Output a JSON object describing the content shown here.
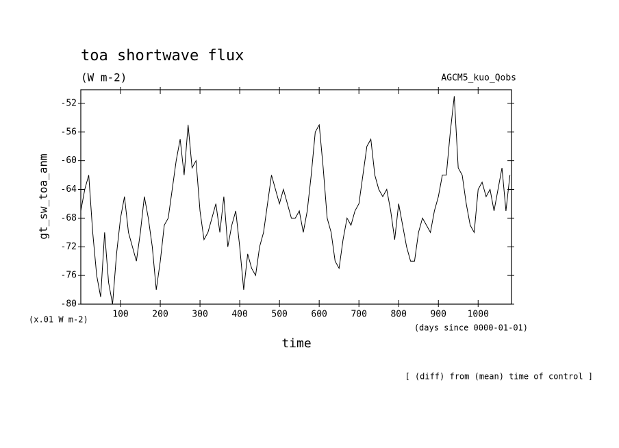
{
  "chart_data": {
    "type": "line",
    "title": "toa shortwave flux",
    "subtitle": "(W m-2)",
    "annotation_right": "AGCM5_kuo_Qobs",
    "y_label": "gt_sw_toa_anm",
    "y_unit": "(x.01 W m-2)",
    "x_unit": "(days since 0000-01-01)",
    "x_label": "time",
    "footnote": "[ (diff) from (mean) time of control ]",
    "xlim": [
      0,
      1084
    ],
    "ylim": [
      -80,
      -50.1
    ],
    "xticks": [
      100,
      200,
      300,
      400,
      500,
      600,
      700,
      800,
      900,
      1000
    ],
    "yticks": [
      -80,
      -76,
      -72,
      -68,
      -64,
      -60,
      -56,
      -52
    ],
    "x": [
      0,
      10,
      20,
      30,
      40,
      50,
      60,
      70,
      80,
      90,
      100,
      110,
      120,
      130,
      140,
      150,
      160,
      170,
      180,
      190,
      200,
      210,
      220,
      230,
      240,
      250,
      260,
      270,
      280,
      290,
      300,
      310,
      320,
      330,
      340,
      350,
      360,
      370,
      380,
      390,
      400,
      410,
      420,
      430,
      440,
      450,
      460,
      470,
      480,
      490,
      500,
      510,
      520,
      530,
      540,
      550,
      560,
      570,
      580,
      590,
      600,
      610,
      620,
      630,
      640,
      650,
      660,
      670,
      680,
      690,
      700,
      710,
      720,
      730,
      740,
      750,
      760,
      770,
      780,
      790,
      800,
      810,
      820,
      830,
      840,
      850,
      860,
      870,
      880,
      890,
      900,
      910,
      920,
      930,
      940,
      950,
      960,
      970,
      980,
      990,
      1000,
      1010,
      1020,
      1030,
      1040,
      1050,
      1060,
      1070,
      1080
    ],
    "series": [
      {
        "color": "#000000",
        "values": [
          -67,
          -64,
          -62,
          -70,
          -76,
          -79,
          -70,
          -77,
          -80,
          -73,
          -68,
          -65,
          -70,
          -72,
          -74,
          -70,
          -65,
          -68,
          -72,
          -78,
          -74,
          -69,
          -68,
          -64,
          -60,
          -57,
          -62,
          -55,
          -61,
          -60,
          -67,
          -71,
          -70,
          -68,
          -66,
          -70,
          -65,
          -72,
          -69,
          -67,
          -72,
          -78,
          -73,
          -75,
          -76,
          -72,
          -70,
          -66,
          -62,
          -64,
          -66,
          -64,
          -66,
          -68,
          -68,
          -67,
          -70,
          -67,
          -62,
          -56,
          -55,
          -61,
          -68,
          -70,
          -74,
          -75,
          -71,
          -68,
          -69,
          -67,
          -66,
          -62,
          -58,
          -57,
          -62,
          -64,
          -65,
          -64,
          -67,
          -71,
          -66,
          -69,
          -72,
          -74,
          -74,
          -70,
          -68,
          -69,
          -70,
          -67,
          -65,
          -62,
          -62,
          -56,
          -51,
          -61,
          -62,
          -66,
          -69,
          -70,
          -64,
          -63,
          -65,
          -64,
          -67,
          -64,
          -61,
          -67,
          -62
        ]
      }
    ]
  }
}
